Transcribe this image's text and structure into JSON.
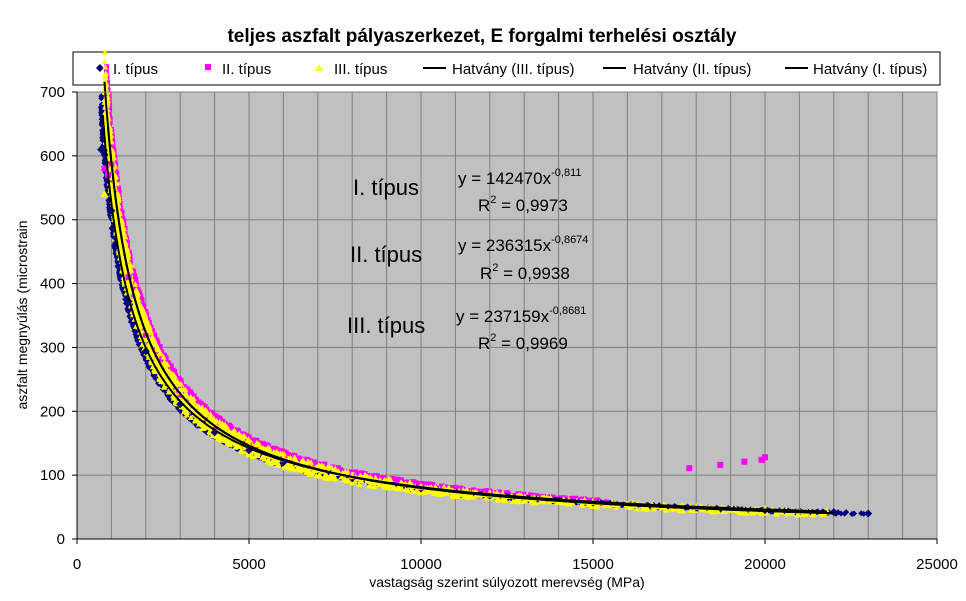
{
  "chart_data": {
    "type": "scatter",
    "title": "teljes aszfalt pályaszerkezet, E forgalmi terhelési osztály",
    "xlabel": "vastagság szerint súlyozott merevség (MPa)",
    "ylabel": "aszfalt megnyúlás (microstrain",
    "xlim": [
      0,
      25000
    ],
    "ylim": [
      0,
      700
    ],
    "x_ticks": [
      "0",
      "5000",
      "10000",
      "15000",
      "20000",
      "25000"
    ],
    "y_ticks": [
      "0",
      "100",
      "200",
      "300",
      "400",
      "500",
      "600",
      "700"
    ],
    "grid": true,
    "legend_position": "top",
    "plot_background": "#c0c0c0",
    "series": [
      {
        "name": "I. típus",
        "marker": "diamond",
        "color": "#000080",
        "x_range": [
          700,
          23000
        ],
        "note_fit": "power",
        "x": [
          700,
          800,
          1000,
          1500,
          2000,
          3000,
          4000,
          5000,
          6000,
          8000,
          10000,
          12000,
          15000,
          18000,
          20000,
          22000,
          23000
        ],
        "y": [
          610,
          602,
          514,
          372,
          294,
          211,
          167,
          139,
          120,
          95,
          79,
          68,
          57,
          49,
          45,
          42,
          40
        ]
      },
      {
        "name": "II. típus",
        "marker": "square",
        "color": "#ff00ff",
        "x": [
          800,
          900,
          1000,
          1500,
          2000,
          3000,
          4000,
          5000,
          6000,
          8000,
          10000,
          12000,
          15000,
          17800,
          18700,
          19400,
          19900,
          20000
        ],
        "y": [
          580,
          570,
          586,
          410,
          320,
          226,
          176,
          146,
          125,
          98,
          81,
          69,
          58,
          111,
          116,
          121,
          124,
          128
        ]
      },
      {
        "name": "III. típus",
        "marker": "triangle",
        "color": "#ffff00",
        "x": [
          800,
          1000,
          1500,
          2000,
          3000,
          4000,
          5000,
          6000,
          8000,
          10000,
          12000,
          15000,
          18000,
          20000,
          21800
        ],
        "y": [
          540,
          582,
          420,
          327,
          230,
          180,
          148,
          127,
          99,
          82,
          70,
          58,
          50,
          47,
          43
        ]
      }
    ],
    "trendlines": [
      {
        "name": "Hatvány (III. típus)",
        "coef": 237159,
        "exp": -0.8681,
        "x_range": [
          800,
          22000
        ]
      },
      {
        "name": "Hatvány (II. típus)",
        "coef": 236315,
        "exp": -0.8674,
        "x_range": [
          900,
          22000
        ]
      },
      {
        "name": "Hatvány (I. típus)",
        "coef": 142470,
        "exp": -0.811,
        "x_range": [
          750,
          21800
        ]
      }
    ],
    "annotations": [
      {
        "label": "I. típus",
        "equation": "y = 142470x",
        "exponent": "-0,811",
        "r2_prefix": "R",
        "r2_sup": "2",
        "r2_value": " = 0,9973"
      },
      {
        "label": "II. típus",
        "equation": "y = 236315x",
        "exponent": "-0,8674",
        "r2_prefix": "R",
        "r2_sup": "2",
        "r2_value": " = 0,9938"
      },
      {
        "label": "III. típus",
        "equation": "y = 237159x",
        "exponent": "-0,8681",
        "r2_prefix": "R",
        "r2_sup": "2",
        "r2_value": " = 0,9969"
      }
    ]
  }
}
